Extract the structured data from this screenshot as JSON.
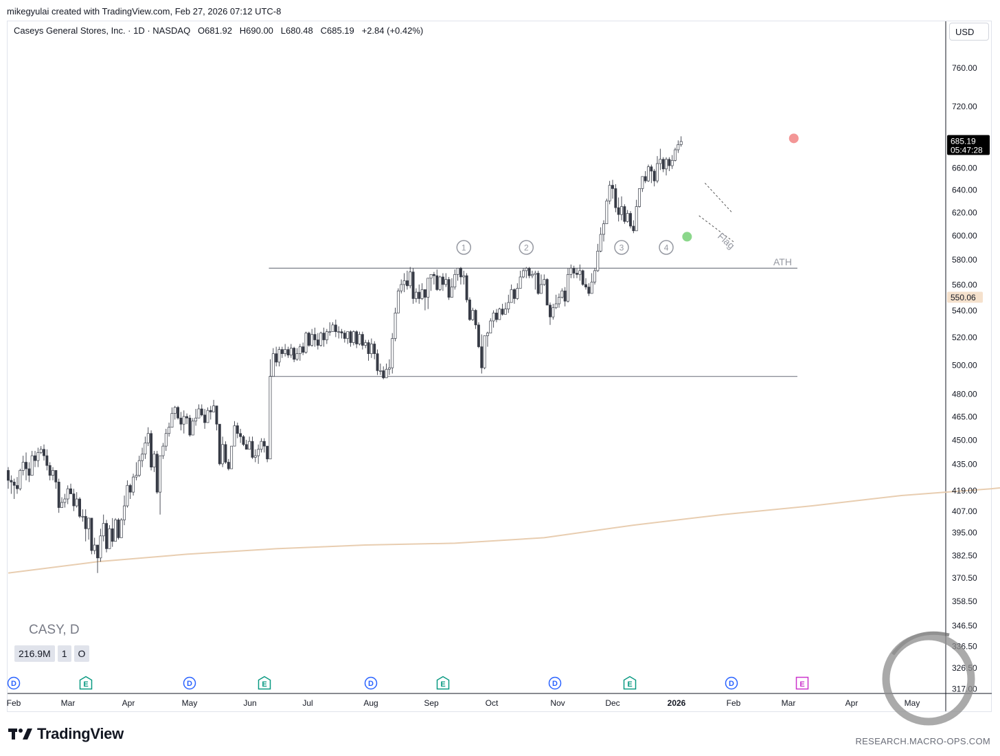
{
  "header": {
    "credit": "mikegyulai created with TradingView.com, Feb 27, 2026 07:12 UTC-8",
    "currency": "USD"
  },
  "legend": {
    "symbol_name": "Caseys General Stores, Inc. · 1D · NASDAQ",
    "open": "O681.92",
    "high": "H690.00",
    "low": "L680.48",
    "close": "C685.19",
    "change": "+2.84 (+0.42%)",
    "ticker_label": "CASY, D",
    "volume": "216.9M",
    "vol_btn1": "1",
    "vol_btn2": "O"
  },
  "footer": {
    "brand": "TradingView",
    "site": "RESEARCH.MACRO-OPS.COM"
  },
  "colors": {
    "up_candle": "#ffffff",
    "down_candle": "#363a45",
    "moving_average": "#e8cdb0",
    "lines": "#787b86",
    "breakout_marker": "#7ed37e",
    "last_marker": "#f28b8b",
    "dividend_badge": "#2962ff",
    "earnings_badge": "#089981",
    "future_earnings_badge": "#cc33cc"
  },
  "chart_data": {
    "type": "candlestick",
    "scale": "log",
    "y_ticks": [
      "760.00",
      "720.00",
      "685.19",
      "660.00",
      "640.00",
      "620.00",
      "600.00",
      "580.00",
      "560.00",
      "550.06",
      "540.00",
      "520.00",
      "500.00",
      "480.00",
      "465.00",
      "450.00",
      "435.00",
      "419.00",
      "407.00",
      "395.00",
      "382.50",
      "370.50",
      "358.50",
      "346.50",
      "336.50",
      "326.50",
      "317.00"
    ],
    "x_labels": [
      "Feb",
      "Mar",
      "Apr",
      "May",
      "Jun",
      "Jul",
      "Aug",
      "Sep",
      "Oct",
      "Nov",
      "Dec",
      "2026",
      "Feb",
      "Mar",
      "Apr",
      "May"
    ],
    "last_price": "685.19",
    "last_countdown": "05:47:28",
    "ma_value": "550.06",
    "range_top": 573,
    "range_bottom": 492,
    "annotations": {
      "ath": "ATH",
      "flag": "Flag",
      "touches": [
        "1",
        "2",
        "3",
        "4"
      ]
    },
    "events": [
      "D",
      "E",
      "D",
      "E",
      "D",
      "E",
      "D",
      "E",
      "D",
      "E"
    ],
    "candles": [
      [
        431,
        425,
        433,
        420
      ],
      [
        425,
        424,
        428,
        417
      ],
      [
        424,
        422,
        426,
        414
      ],
      [
        422,
        420,
        427,
        417
      ],
      [
        420,
        431,
        432,
        419
      ],
      [
        431,
        436,
        440,
        428
      ],
      [
        436,
        432,
        442,
        425
      ],
      [
        432,
        428,
        436,
        424
      ],
      [
        428,
        440,
        443,
        428
      ],
      [
        440,
        437,
        443,
        433
      ],
      [
        437,
        442,
        445,
        433
      ],
      [
        442,
        444,
        446,
        441
      ],
      [
        444,
        440,
        447,
        437
      ],
      [
        440,
        434,
        444,
        431
      ],
      [
        434,
        428,
        436,
        425
      ],
      [
        428,
        431,
        433,
        425
      ],
      [
        431,
        424,
        431,
        420
      ],
      [
        424,
        409,
        426,
        406
      ],
      [
        409,
        412,
        415,
        410
      ],
      [
        412,
        414,
        417,
        409
      ],
      [
        414,
        420,
        422,
        411
      ],
      [
        420,
        417,
        423,
        417
      ],
      [
        417,
        410,
        420,
        407
      ],
      [
        410,
        414,
        418,
        409
      ],
      [
        414,
        404,
        415,
        403
      ],
      [
        404,
        404,
        408,
        401
      ],
      [
        404,
        397,
        408,
        390
      ],
      [
        397,
        403,
        403,
        391
      ],
      [
        403,
        385,
        403,
        383
      ],
      [
        385,
        388,
        392,
        383
      ],
      [
        388,
        381,
        388,
        373
      ],
      [
        381,
        393,
        397,
        379
      ],
      [
        393,
        400,
        405,
        390
      ],
      [
        400,
        386,
        402,
        384
      ],
      [
        386,
        397,
        399,
        386
      ],
      [
        397,
        390,
        403,
        387
      ],
      [
        390,
        402,
        403,
        390
      ],
      [
        402,
        392,
        403,
        391
      ],
      [
        392,
        402,
        403,
        392
      ],
      [
        402,
        410,
        416,
        399
      ],
      [
        410,
        422,
        425,
        409
      ],
      [
        422,
        418,
        423,
        414
      ],
      [
        418,
        427,
        429,
        416
      ],
      [
        427,
        428,
        436,
        425
      ],
      [
        428,
        437,
        440,
        427
      ],
      [
        437,
        441,
        445,
        433
      ],
      [
        441,
        448,
        452,
        438
      ],
      [
        448,
        454,
        458,
        446
      ],
      [
        454,
        433,
        456,
        431
      ],
      [
        433,
        441,
        443,
        430
      ],
      [
        441,
        418,
        443,
        417
      ],
      [
        418,
        440,
        440,
        405
      ],
      [
        440,
        446,
        448,
        438
      ],
      [
        446,
        454,
        457,
        443
      ],
      [
        454,
        458,
        461,
        452
      ],
      [
        458,
        467,
        471,
        458
      ],
      [
        467,
        471,
        472,
        463
      ],
      [
        471,
        464,
        472,
        463
      ],
      [
        464,
        460,
        468,
        456
      ],
      [
        460,
        465,
        469,
        454
      ],
      [
        465,
        464,
        467,
        460
      ],
      [
        464,
        453,
        466,
        452
      ],
      [
        453,
        462,
        464,
        453
      ],
      [
        462,
        464,
        470,
        459
      ],
      [
        464,
        470,
        473,
        464
      ],
      [
        470,
        466,
        473,
        465
      ],
      [
        466,
        461,
        470,
        457
      ],
      [
        461,
        469,
        471,
        461
      ],
      [
        469,
        468,
        472,
        463
      ],
      [
        468,
        472,
        476,
        468
      ],
      [
        472,
        460,
        472,
        456
      ],
      [
        460,
        435,
        460,
        434
      ],
      [
        435,
        447,
        452,
        433
      ],
      [
        447,
        436,
        449,
        435
      ],
      [
        436,
        432,
        438,
        431
      ],
      [
        432,
        446,
        446,
        432
      ],
      [
        446,
        459,
        462,
        446
      ],
      [
        459,
        454,
        461,
        451
      ],
      [
        454,
        452,
        457,
        448
      ],
      [
        452,
        447,
        453,
        446
      ],
      [
        447,
        444,
        450,
        444
      ],
      [
        444,
        449,
        452,
        444
      ],
      [
        449,
        439,
        452,
        438
      ],
      [
        439,
        440,
        444,
        436
      ],
      [
        440,
        444,
        447,
        435
      ],
      [
        444,
        449,
        451,
        442
      ],
      [
        449,
        446,
        451,
        442
      ],
      [
        446,
        438,
        446,
        436
      ],
      [
        438,
        492,
        504,
        485
      ],
      [
        492,
        508,
        512,
        492
      ],
      [
        508,
        502,
        513,
        499
      ],
      [
        502,
        511,
        513,
        499
      ],
      [
        511,
        508,
        513,
        505
      ],
      [
        508,
        511,
        515,
        506
      ],
      [
        511,
        507,
        513,
        505
      ],
      [
        507,
        512,
        515,
        505
      ],
      [
        512,
        504,
        513,
        502
      ],
      [
        504,
        508,
        512,
        503
      ],
      [
        508,
        513,
        515,
        503
      ],
      [
        513,
        509,
        516,
        507
      ],
      [
        509,
        523,
        524,
        508
      ],
      [
        523,
        514,
        524,
        513
      ],
      [
        514,
        522,
        526,
        513
      ],
      [
        522,
        518,
        527,
        513
      ],
      [
        518,
        514,
        523,
        511
      ],
      [
        514,
        523,
        524,
        513
      ],
      [
        523,
        518,
        527,
        513
      ],
      [
        518,
        524,
        526,
        515
      ],
      [
        524,
        524,
        531,
        521
      ],
      [
        524,
        529,
        531,
        524
      ],
      [
        529,
        524,
        533,
        520
      ],
      [
        524,
        524,
        528,
        519
      ],
      [
        524,
        523,
        526,
        519
      ],
      [
        523,
        519,
        525,
        516
      ],
      [
        519,
        524,
        524,
        515
      ],
      [
        524,
        516,
        525,
        513
      ],
      [
        516,
        524,
        525,
        514
      ],
      [
        524,
        515,
        525,
        512
      ],
      [
        515,
        522,
        524,
        514
      ],
      [
        522,
        514,
        524,
        511
      ],
      [
        514,
        516,
        518,
        512
      ],
      [
        516,
        508,
        518,
        503
      ],
      [
        508,
        515,
        519,
        505
      ],
      [
        515,
        508,
        517,
        504
      ],
      [
        508,
        496,
        511,
        493
      ],
      [
        496,
        496,
        501,
        493
      ],
      [
        496,
        491,
        499,
        490
      ],
      [
        491,
        497,
        501,
        491
      ],
      [
        497,
        498,
        504,
        493
      ],
      [
        498,
        519,
        523,
        494
      ],
      [
        519,
        538,
        542,
        517
      ],
      [
        538,
        555,
        557,
        538
      ],
      [
        555,
        560,
        564,
        553
      ],
      [
        560,
        563,
        569,
        554
      ],
      [
        563,
        559,
        571,
        556
      ],
      [
        559,
        570,
        574,
        557
      ],
      [
        570,
        549,
        573,
        545
      ],
      [
        549,
        554,
        557,
        546
      ],
      [
        554,
        549,
        560,
        545
      ],
      [
        549,
        556,
        561,
        548
      ],
      [
        556,
        550,
        556,
        540
      ],
      [
        550,
        565,
        565,
        541
      ],
      [
        565,
        568,
        568,
        555
      ],
      [
        568,
        567,
        570,
        560
      ],
      [
        567,
        556,
        572,
        555
      ],
      [
        556,
        566,
        567,
        555
      ],
      [
        566,
        560,
        569,
        555
      ],
      [
        560,
        564,
        569,
        558
      ],
      [
        564,
        550,
        566,
        548
      ],
      [
        550,
        558,
        565,
        550
      ],
      [
        558,
        568,
        572,
        556
      ],
      [
        568,
        573,
        573,
        563
      ],
      [
        573,
        566,
        574,
        560
      ],
      [
        566,
        567,
        571,
        560
      ],
      [
        567,
        548,
        569,
        546
      ],
      [
        548,
        533,
        550,
        532
      ],
      [
        533,
        540,
        542,
        532
      ],
      [
        540,
        529,
        541,
        526
      ],
      [
        529,
        513,
        531,
        512
      ],
      [
        513,
        498,
        522,
        494
      ],
      [
        498,
        521,
        521,
        497
      ],
      [
        521,
        523,
        524,
        513
      ],
      [
        523,
        532,
        534,
        523
      ],
      [
        532,
        538,
        540,
        527
      ],
      [
        538,
        533,
        541,
        531
      ],
      [
        533,
        541,
        542,
        533
      ],
      [
        541,
        537,
        545,
        536
      ],
      [
        537,
        541,
        546,
        537
      ],
      [
        541,
        546,
        552,
        538
      ],
      [
        546,
        556,
        560,
        546
      ],
      [
        556,
        549,
        557,
        545
      ],
      [
        549,
        557,
        561,
        548
      ],
      [
        557,
        566,
        571,
        557
      ],
      [
        566,
        571,
        573,
        565
      ],
      [
        571,
        573,
        574,
        565
      ],
      [
        573,
        567,
        574,
        565
      ],
      [
        567,
        568,
        571,
        565
      ],
      [
        568,
        569,
        571,
        556
      ],
      [
        569,
        553,
        571,
        552
      ],
      [
        553,
        560,
        568,
        553
      ],
      [
        560,
        564,
        568,
        559
      ],
      [
        564,
        544,
        565,
        544
      ],
      [
        544,
        535,
        546,
        529
      ],
      [
        535,
        542,
        545,
        533
      ],
      [
        542,
        545,
        552,
        541
      ],
      [
        545,
        550,
        553,
        542
      ],
      [
        550,
        555,
        557,
        549
      ],
      [
        555,
        547,
        558,
        543
      ],
      [
        547,
        568,
        573,
        546
      ],
      [
        568,
        573,
        576,
        565
      ],
      [
        573,
        569,
        575,
        565
      ],
      [
        569,
        568,
        573,
        565
      ],
      [
        568,
        571,
        576,
        563
      ],
      [
        571,
        560,
        572,
        559
      ],
      [
        560,
        558,
        565,
        556
      ],
      [
        558,
        553,
        561,
        551
      ],
      [
        553,
        562,
        569,
        553
      ],
      [
        562,
        571,
        573,
        560
      ],
      [
        571,
        587,
        593,
        570
      ],
      [
        587,
        601,
        607,
        586
      ],
      [
        601,
        610,
        613,
        595
      ],
      [
        610,
        630,
        632,
        610
      ],
      [
        630,
        644,
        648,
        627
      ],
      [
        644,
        641,
        649,
        632
      ],
      [
        641,
        624,
        645,
        620
      ],
      [
        624,
        618,
        633,
        612
      ],
      [
        618,
        625,
        634,
        613
      ],
      [
        625,
        612,
        627,
        610
      ],
      [
        612,
        619,
        622,
        611
      ],
      [
        619,
        608,
        621,
        606
      ],
      [
        608,
        604,
        613,
        602
      ],
      [
        604,
        625,
        631,
        605
      ],
      [
        625,
        641,
        641,
        624
      ],
      [
        641,
        652,
        652,
        638
      ],
      [
        652,
        648,
        657,
        646
      ],
      [
        648,
        661,
        663,
        647
      ],
      [
        661,
        657,
        663,
        646
      ],
      [
        657,
        648,
        659,
        643
      ],
      [
        648,
        664,
        671,
        646
      ],
      [
        664,
        668,
        678,
        658
      ],
      [
        668,
        659,
        670,
        656
      ],
      [
        659,
        668,
        670,
        653
      ],
      [
        668,
        662,
        670,
        657
      ],
      [
        662,
        667,
        672,
        659
      ],
      [
        667,
        677,
        679,
        666
      ],
      [
        677,
        682,
        686,
        674
      ],
      [
        682,
        685,
        690,
        680
      ]
    ],
    "ma": [
      [
        0,
        373
      ],
      [
        30,
        379
      ],
      [
        60,
        383
      ],
      [
        90,
        386
      ],
      [
        120,
        388
      ],
      [
        150,
        389
      ],
      [
        180,
        392
      ],
      [
        210,
        399
      ],
      [
        240,
        405
      ],
      [
        270,
        410
      ],
      [
        300,
        416
      ],
      [
        330,
        420
      ],
      [
        360,
        425
      ],
      [
        385,
        429
      ],
      [
        420,
        439
      ],
      [
        460,
        450
      ],
      [
        500,
        460
      ],
      [
        540,
        470
      ],
      [
        580,
        478
      ],
      [
        620,
        484
      ],
      [
        650,
        488
      ],
      [
        680,
        497
      ],
      [
        720,
        506
      ],
      [
        760,
        514
      ],
      [
        790,
        520
      ],
      [
        840,
        525
      ],
      [
        880,
        529
      ],
      [
        920,
        535
      ],
      [
        960,
        540
      ],
      [
        1000,
        548
      ],
      [
        1040,
        560
      ],
      [
        1080,
        575
      ],
      [
        1110,
        590
      ],
      [
        1145,
        607
      ]
    ]
  }
}
